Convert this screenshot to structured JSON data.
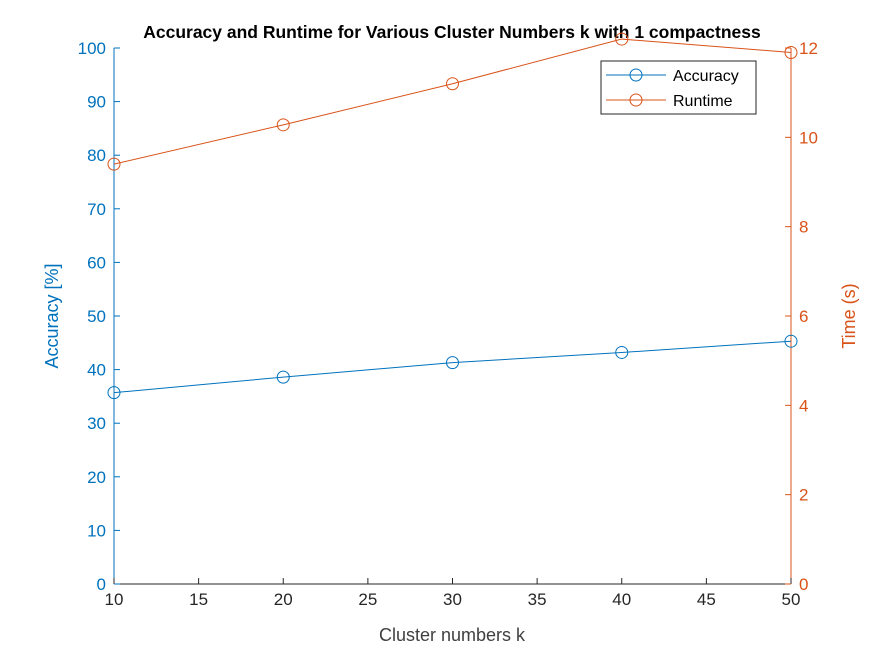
{
  "chart_data": {
    "type": "line",
    "title": "Accuracy and Runtime for Various Cluster Numbers k with 1 compactness",
    "xlabel": "Cluster numbers k",
    "ylabel_left": "Accuracy [%]",
    "ylabel_right": "Time (s)",
    "x": [
      10,
      20,
      30,
      40,
      50
    ],
    "xlim": [
      10,
      50
    ],
    "xticks": [
      10,
      15,
      20,
      25,
      30,
      35,
      40,
      45,
      50
    ],
    "ylim_left": [
      0,
      100
    ],
    "yticks_left": [
      0,
      10,
      20,
      30,
      40,
      50,
      60,
      70,
      80,
      90,
      100
    ],
    "ylim_right": [
      0,
      12
    ],
    "yticks_right": [
      0,
      2,
      4,
      6,
      8,
      10,
      12
    ],
    "grid": false,
    "legend_position": "top-right",
    "series": [
      {
        "name": "Accuracy",
        "axis": "left",
        "color": "#0072BD",
        "marker": "circle",
        "values": [
          35.7,
          38.6,
          41.3,
          43.2,
          45.3
        ]
      },
      {
        "name": "Runtime",
        "axis": "right",
        "color": "#D95319",
        "marker": "circle",
        "values": [
          9.4,
          10.28,
          11.2,
          12.2,
          11.9
        ]
      }
    ]
  }
}
